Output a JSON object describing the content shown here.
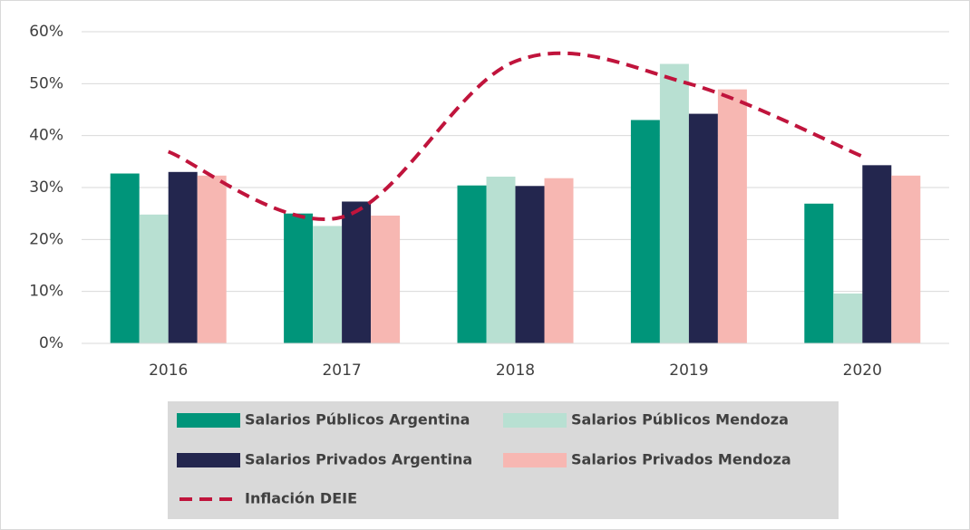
{
  "chart_data": {
    "type": "bar",
    "categories": [
      "2016",
      "2017",
      "2018",
      "2019",
      "2020"
    ],
    "series": [
      {
        "name": "Salarios Públicos Argentina",
        "color": "#00957a",
        "values": [
          32.7,
          25,
          30.4,
          43,
          26.9
        ]
      },
      {
        "name": "Salarios Públicos Mendoza",
        "color": "#b8e0d2",
        "values": [
          24.8,
          22.6,
          32.1,
          53.8,
          9.6
        ]
      },
      {
        "name": "Salarios Privados Argentina",
        "color": "#23264e",
        "values": [
          33,
          27.3,
          30.3,
          44.2,
          34.3
        ]
      },
      {
        "name": "Salarios Privados Mendoza",
        "color": "#f7b7b2",
        "values": [
          32.3,
          24.6,
          31.8,
          48.9,
          32.3
        ]
      },
      {
        "name": "Inflación DEIE",
        "color": "#c0143c",
        "type": "line",
        "dashed": true,
        "smooth": true,
        "values": [
          36.9,
          24.3,
          54.3,
          50,
          36
        ]
      }
    ],
    "ylim": [
      0,
      60
    ],
    "yticks": [
      {
        "value": 0,
        "label": "0%"
      },
      {
        "value": 10,
        "label": "10%"
      },
      {
        "value": 20,
        "label": "20%"
      },
      {
        "value": 30,
        "label": "30%"
      },
      {
        "value": 40,
        "label": "40%"
      },
      {
        "value": 50,
        "label": "50%"
      },
      {
        "value": 60,
        "label": "60%"
      }
    ],
    "grid": true
  }
}
